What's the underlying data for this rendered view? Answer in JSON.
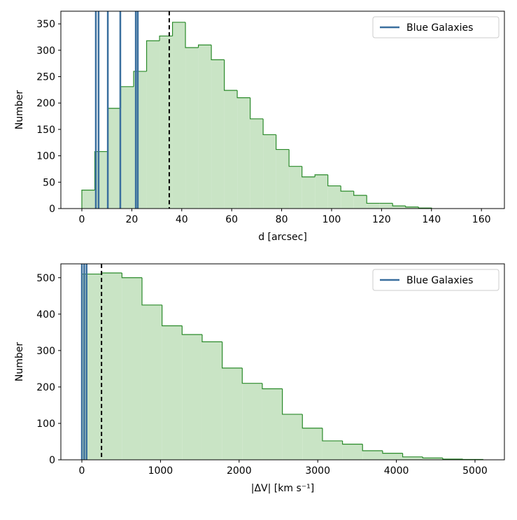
{
  "chart_data": [
    {
      "type": "histogram",
      "xlabel": "d [arcsec]",
      "ylabel": "Number",
      "bins": [
        0,
        5.19,
        10.37,
        15.56,
        20.74,
        25.93,
        31.11,
        36.3,
        41.48,
        46.67,
        51.85,
        57.04,
        62.22,
        67.41,
        72.59,
        77.78,
        82.96,
        88.15,
        93.33,
        98.52,
        103.7,
        108.89,
        114.07,
        119.26,
        124.44,
        129.63,
        134.81,
        140
      ],
      "counts": [
        35,
        108,
        190,
        231,
        260,
        318,
        327,
        353,
        305,
        310,
        282,
        224,
        210,
        170,
        140,
        112,
        80,
        60,
        64,
        43,
        33,
        25,
        10,
        10,
        5,
        3,
        1
      ],
      "color": "#c9e4c5",
      "edge_color": "#2a8a2a",
      "series": [
        {
          "name": "Blue Galaxies",
          "color": "#3a6f9e",
          "values": [
            5.6,
            6.7,
            10.4,
            15.4,
            21.6,
            22.4
          ]
        }
      ],
      "reference_line": 35.0,
      "xlim": [
        -8.4,
        169.2
      ],
      "ylim": [
        0,
        374
      ],
      "xticks": [
        0,
        20,
        40,
        60,
        80,
        100,
        120,
        140,
        160
      ],
      "yticks": [
        0,
        50,
        100,
        150,
        200,
        250,
        300,
        350
      ],
      "legend": "upper right"
    },
    {
      "type": "histogram",
      "xlabel": "|ΔV| [km s⁻¹]",
      "ylabel": "Number",
      "bins": [
        0,
        255,
        510,
        765,
        1020,
        1275,
        1530,
        1785,
        2040,
        2295,
        2550,
        2805,
        3060,
        3315,
        3570,
        3825,
        4080,
        4335,
        4590,
        4845,
        5100
      ],
      "counts": [
        510,
        513,
        500,
        425,
        368,
        344,
        324,
        252,
        210,
        195,
        125,
        87,
        52,
        43,
        25,
        18,
        8,
        5,
        2,
        1
      ],
      "color": "#c9e4c5",
      "edge_color": "#2a8a2a",
      "series": [
        {
          "name": "Blue Galaxies",
          "color": "#3a6f9e",
          "values": [
            0,
            30,
            60
          ]
        }
      ],
      "reference_line": 250,
      "xlim": [
        -267,
        5374
      ],
      "ylim": [
        0,
        538
      ],
      "xticks": [
        0,
        1000,
        2000,
        3000,
        4000,
        5000
      ],
      "yticks": [
        0,
        100,
        200,
        300,
        400,
        500
      ],
      "legend": "upper right"
    }
  ]
}
